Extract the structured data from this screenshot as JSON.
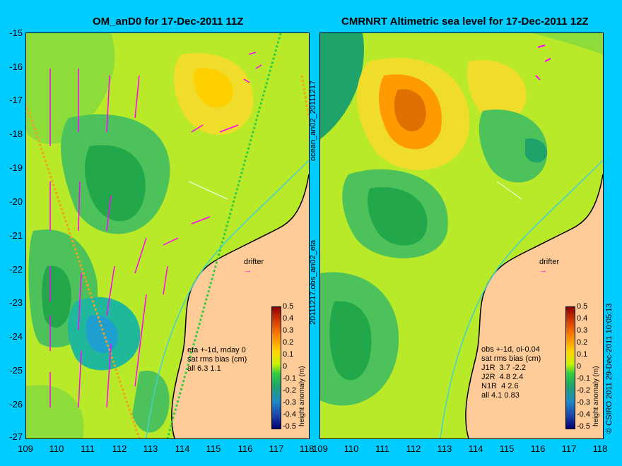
{
  "left": {
    "title": "OM_anD0 for 17-Dec-2011 11Z",
    "note": "eta +-1d, mday 0\nsat rms bias (cm)\nall 6.3 1.1",
    "drifter": "drifter"
  },
  "right": {
    "title": "CMRNRT Altimetric sea level  for 17-Dec-2011 12Z",
    "note": "obs +-1d, oi-0.04\nsat rms bias (cm)\nJ1R  3.7 -2.2\nJ2R  4.8 2.4\nN1R  4 2.6\nall 4.1 0.83",
    "drifter": "drifter"
  },
  "y_ticks": [
    "-15",
    "-16",
    "-17",
    "-18",
    "-19",
    "-20",
    "-21",
    "-22",
    "-23",
    "-24",
    "-25",
    "-26",
    "-27"
  ],
  "x_ticks": [
    "109",
    "110",
    "111",
    "112",
    "113",
    "114",
    "115",
    "116",
    "117",
    "118"
  ],
  "colorbar": {
    "label": "height anomaly (m)",
    "ticks": [
      "0.5",
      "0.4",
      "0.3",
      "0.2",
      "0.1",
      "0",
      "-0.1",
      "-0.2",
      "-0.3",
      "-0.4",
      "-0.5"
    ]
  },
  "side_label_1": "ocean_an02_20111217",
  "side_label_2": "20111217.obs_an02_eta",
  "copyright": "© CSIRO 2011   29-Dec-2011 10:05:13",
  "colors": {
    "background": "#00ccff",
    "land": "#ffcc99",
    "arrow": "#ff00ff"
  }
}
